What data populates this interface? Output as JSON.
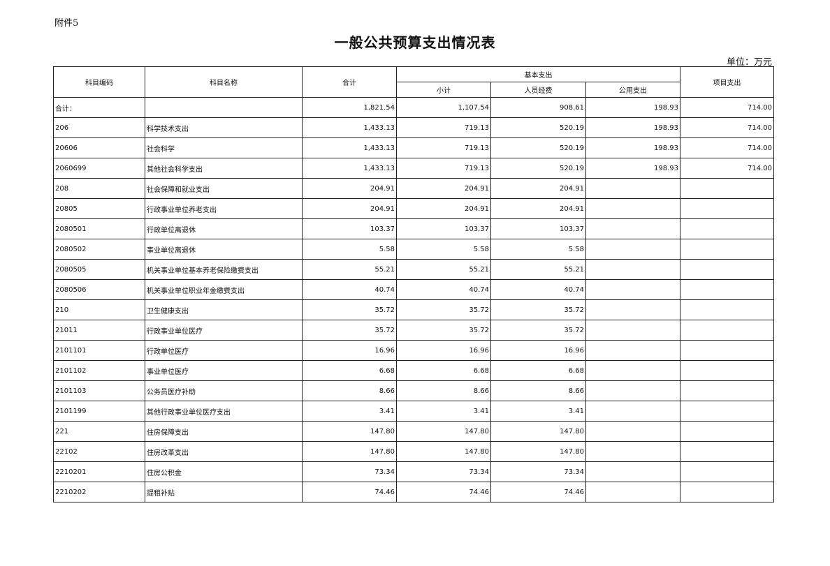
{
  "attachment_label": "附件5",
  "title": "一般公共预算支出情况表",
  "unit": "单位：万元",
  "headers": {
    "code": "科目编码",
    "name": "科目名称",
    "total": "合计",
    "basic": "基本支出",
    "subtotal": "小计",
    "personnel": "人员经费",
    "public": "公用支出",
    "project": "项目支出"
  },
  "rows": [
    {
      "code": "合计：",
      "name": "",
      "total": "1,821.54",
      "subtotal": "1,107.54",
      "personnel": "908.61",
      "public": "198.93",
      "project": "714.00"
    },
    {
      "code": "206",
      "name": "科学技术支出",
      "total": "1,433.13",
      "subtotal": "719.13",
      "personnel": "520.19",
      "public": "198.93",
      "project": "714.00"
    },
    {
      "code": "20606",
      "name": "社会科学",
      "total": "1,433.13",
      "subtotal": "719.13",
      "personnel": "520.19",
      "public": "198.93",
      "project": "714.00"
    },
    {
      "code": "2060699",
      "name": "其他社会科学支出",
      "total": "1,433.13",
      "subtotal": "719.13",
      "personnel": "520.19",
      "public": "198.93",
      "project": "714.00"
    },
    {
      "code": "208",
      "name": "社会保障和就业支出",
      "total": "204.91",
      "subtotal": "204.91",
      "personnel": "204.91",
      "public": "",
      "project": ""
    },
    {
      "code": "20805",
      "name": "行政事业单位养老支出",
      "total": "204.91",
      "subtotal": "204.91",
      "personnel": "204.91",
      "public": "",
      "project": ""
    },
    {
      "code": "2080501",
      "name": "行政单位离退休",
      "total": "103.37",
      "subtotal": "103.37",
      "personnel": "103.37",
      "public": "",
      "project": ""
    },
    {
      "code": "2080502",
      "name": "事业单位离退休",
      "total": "5.58",
      "subtotal": "5.58",
      "personnel": "5.58",
      "public": "",
      "project": ""
    },
    {
      "code": "2080505",
      "name": "机关事业单位基本养老保险缴费支出",
      "total": "55.21",
      "subtotal": "55.21",
      "personnel": "55.21",
      "public": "",
      "project": ""
    },
    {
      "code": "2080506",
      "name": "机关事业单位职业年金缴费支出",
      "total": "40.74",
      "subtotal": "40.74",
      "personnel": "40.74",
      "public": "",
      "project": ""
    },
    {
      "code": "210",
      "name": "卫生健康支出",
      "total": "35.72",
      "subtotal": "35.72",
      "personnel": "35.72",
      "public": "",
      "project": ""
    },
    {
      "code": "21011",
      "name": "行政事业单位医疗",
      "total": "35.72",
      "subtotal": "35.72",
      "personnel": "35.72",
      "public": "",
      "project": ""
    },
    {
      "code": "2101101",
      "name": "行政单位医疗",
      "total": "16.96",
      "subtotal": "16.96",
      "personnel": "16.96",
      "public": "",
      "project": ""
    },
    {
      "code": "2101102",
      "name": "事业单位医疗",
      "total": "6.68",
      "subtotal": "6.68",
      "personnel": "6.68",
      "public": "",
      "project": ""
    },
    {
      "code": "2101103",
      "name": "公务员医疗补助",
      "total": "8.66",
      "subtotal": "8.66",
      "personnel": "8.66",
      "public": "",
      "project": ""
    },
    {
      "code": "2101199",
      "name": "其他行政事业单位医疗支出",
      "total": "3.41",
      "subtotal": "3.41",
      "personnel": "3.41",
      "public": "",
      "project": ""
    },
    {
      "code": "221",
      "name": "住房保障支出",
      "total": "147.80",
      "subtotal": "147.80",
      "personnel": "147.80",
      "public": "",
      "project": ""
    },
    {
      "code": "22102",
      "name": "住房改革支出",
      "total": "147.80",
      "subtotal": "147.80",
      "personnel": "147.80",
      "public": "",
      "project": ""
    },
    {
      "code": "2210201",
      "name": "住房公积金",
      "total": "73.34",
      "subtotal": "73.34",
      "personnel": "73.34",
      "public": "",
      "project": ""
    },
    {
      "code": "2210202",
      "name": "提租补贴",
      "total": "74.46",
      "subtotal": "74.46",
      "personnel": "74.46",
      "public": "",
      "project": ""
    }
  ]
}
